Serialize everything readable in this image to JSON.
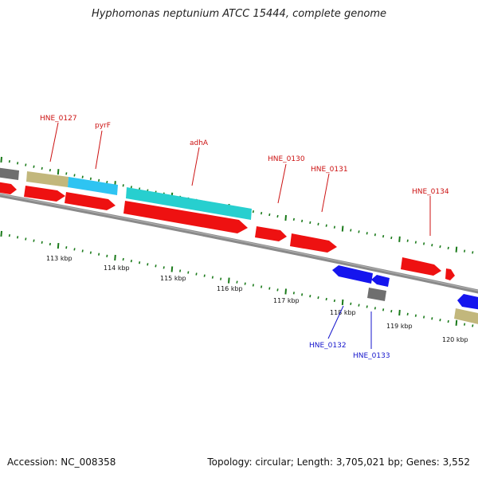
{
  "title": "Hyphomonas neptunium ATCC 15444, complete genome",
  "footer": {
    "accession": "Accession: NC_008358",
    "summary": "Topology: circular; Length: 3,705,021 bp; Genes: 3,552"
  },
  "colors": {
    "cds": "#ee1111",
    "reverse_cds": "#1515ee",
    "khaki": "#c2b77c",
    "sky": "#2ec4f2",
    "teal": "#27cfcf",
    "gray_feature": "#6f6f6f",
    "backbone": "#8a8a8a",
    "tick": "#1a7a1a",
    "label_forward": "#cc1111",
    "label_reverse": "#1515cc"
  },
  "ticks": [
    "113 kbp",
    "114 kbp",
    "115 kbp",
    "116 kbp",
    "117 kbp",
    "118 kbp",
    "119 kbp",
    "120 kbp"
  ],
  "gene_labels": [
    {
      "name": "HNE_0127",
      "strand": "forward"
    },
    {
      "name": "pyrF",
      "strand": "forward"
    },
    {
      "name": "adhA",
      "strand": "forward"
    },
    {
      "name": "HNE_0130",
      "strand": "forward"
    },
    {
      "name": "HNE_0131",
      "strand": "forward"
    },
    {
      "name": "HNE_0134",
      "strand": "forward"
    },
    {
      "name": "HNE_0132",
      "strand": "reverse"
    },
    {
      "name": "HNE_0133",
      "strand": "reverse"
    }
  ]
}
